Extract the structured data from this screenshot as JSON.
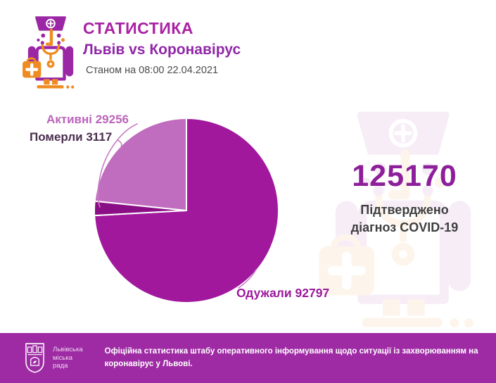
{
  "header": {
    "title": "СТАТИСТИКА",
    "subtitle": "Львів vs Коронавірус",
    "as_of": "Станом на 08:00 22.04.2021"
  },
  "chart_data": {
    "type": "pie",
    "total": 125170,
    "start_angle_deg": -90,
    "direction": "clockwise",
    "slices": [
      {
        "label": "Одужали",
        "value": 92797,
        "display": "Одужали 92797",
        "color": "#a1189d",
        "label_color": "#9b1a9c"
      },
      {
        "label": "Померли",
        "value": 3117,
        "display": "Померли 3117",
        "color": "#8a0f86",
        "label_color": "#4a2d4e"
      },
      {
        "label": "Активні",
        "value": 29256,
        "display": "Активні 29256",
        "color": "#c06cbf",
        "label_color": "#bb64ba"
      }
    ]
  },
  "stat": {
    "value": "125170",
    "caption_line1": "Підтверджено",
    "caption_line2": "діагноз COVID-19",
    "accent_color": "#8d1f9a"
  },
  "footer": {
    "bar_color": "#9e2ba4",
    "logo_line1": "Львівська",
    "logo_line2": "міська",
    "logo_line3": "рада",
    "note": "Офіційна статистика штабу оперативного інформування щодо ситуації із захворюванням на коронавірус у Львові."
  },
  "icons": {
    "doctor_mascot": "doctor-mascot-icon",
    "city_emblem": "lviv-coat-of-arms-icon"
  },
  "colors": {
    "title": "#a922a4",
    "subtitle": "#9127a8",
    "date_text": "#4c4c4c",
    "leader_line": "#c77ec6",
    "purple_icon": "#9b27a5",
    "orange_icon": "#ee8b21"
  }
}
